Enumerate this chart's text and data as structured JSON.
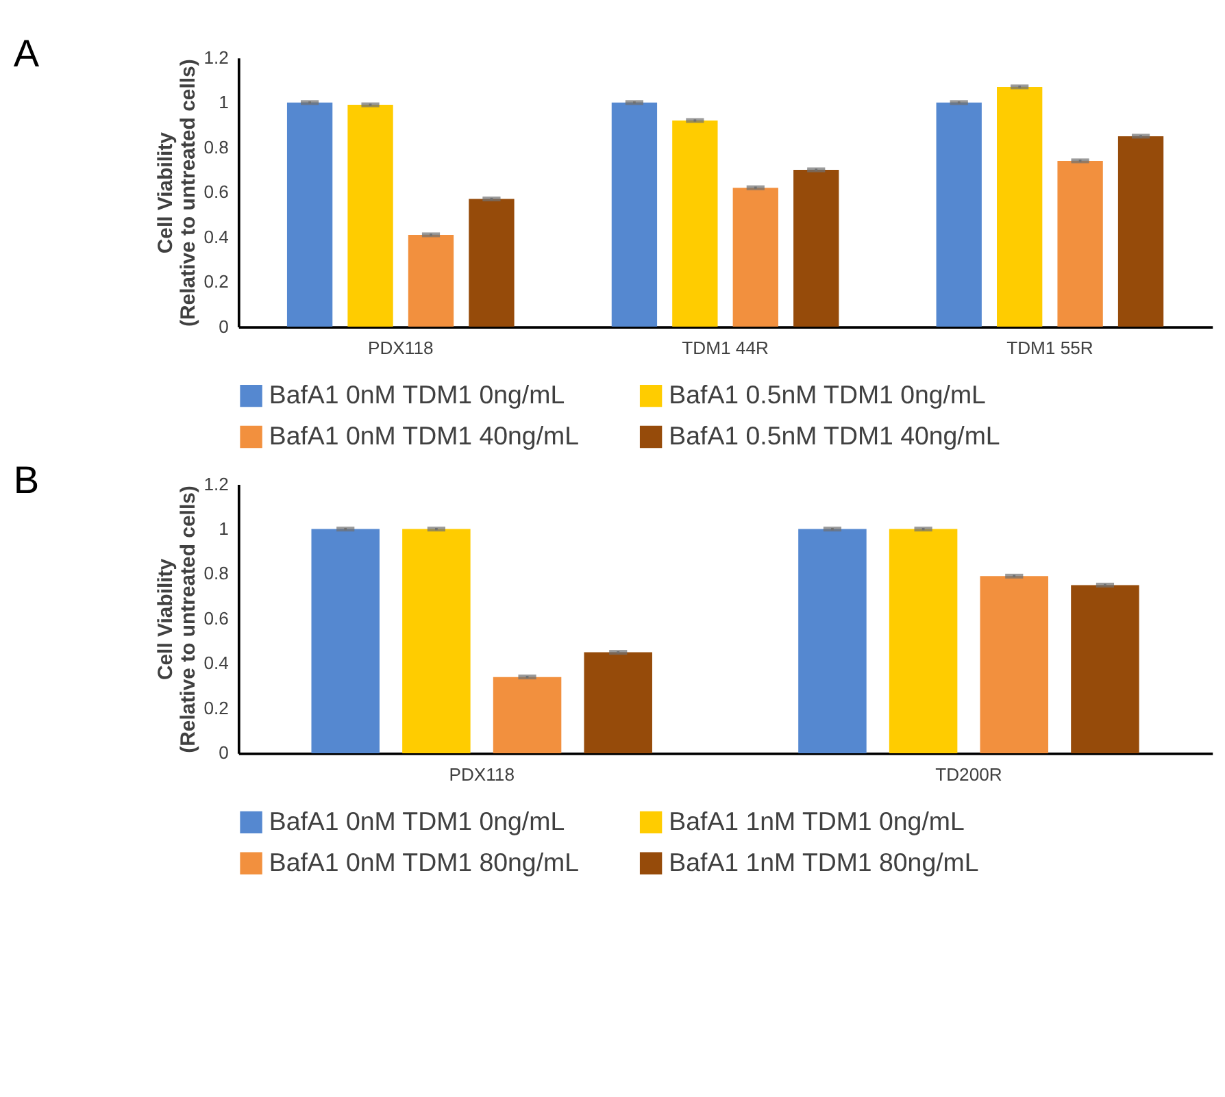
{
  "chart_data": [
    {
      "type": "bar",
      "title": "A",
      "ylabel": "Cell Viability\n(Relative to untreated cells)",
      "categories": [
        "PDX118",
        "TDM1 44R",
        "TDM1 55R"
      ],
      "ylim": [
        0,
        1.2
      ],
      "yticks": [
        0,
        0.2,
        0.4,
        0.6,
        0.8,
        1,
        1.2
      ],
      "grid": false,
      "legend": "bottom",
      "series": [
        {
          "name": "BafA1 0nM TDM1  0ng/mL",
          "color": "#5588d0",
          "values": [
            1.0,
            1.0,
            1.0
          ],
          "errors": [
            0.005,
            0.005,
            0.005
          ]
        },
        {
          "name": "BafA1 0.5nM TDM1  0ng/mL",
          "color": "#ffcc00",
          "values": [
            0.99,
            0.92,
            1.07
          ],
          "errors": [
            0.005,
            0.005,
            0.005
          ]
        },
        {
          "name": "BafA1 0nM TDM1  40ng/mL",
          "color": "#f2903e",
          "values": [
            0.41,
            0.62,
            0.74
          ],
          "errors": [
            0.005,
            0.005,
            0.005
          ]
        },
        {
          "name": "BafA1 0.5nM TDM1  40ng/mL",
          "color": "#964b0a",
          "values": [
            0.57,
            0.7,
            0.85
          ],
          "errors": [
            0.005,
            0.005,
            0.005
          ]
        }
      ]
    },
    {
      "type": "bar",
      "title": "B",
      "ylabel": "Cell Viability\n(Relative to untreated cells)",
      "categories": [
        "PDX118",
        "TD200R"
      ],
      "ylim": [
        0,
        1.2
      ],
      "yticks": [
        0,
        0.2,
        0.4,
        0.6,
        0.8,
        1,
        1.2
      ],
      "grid": false,
      "legend": "bottom",
      "series": [
        {
          "name": "BafA1 0nM TDM1  0ng/mL",
          "color": "#5588d0",
          "values": [
            1.0,
            1.0
          ],
          "errors": [
            0.005,
            0.005
          ]
        },
        {
          "name": "BafA1 1nM TDM1  0ng/mL",
          "color": "#ffcc00",
          "values": [
            1.0,
            1.0
          ],
          "errors": [
            0.005,
            0.005
          ]
        },
        {
          "name": "BafA1 0nM TDM1  80ng/mL",
          "color": "#f2903e",
          "values": [
            0.34,
            0.79
          ],
          "errors": [
            0.005,
            0.005
          ]
        },
        {
          "name": "BafA1 1nM TDM1  80ng/mL",
          "color": "#964b0a",
          "values": [
            0.45,
            0.75
          ],
          "errors": [
            0.005,
            0.005
          ]
        }
      ]
    }
  ]
}
